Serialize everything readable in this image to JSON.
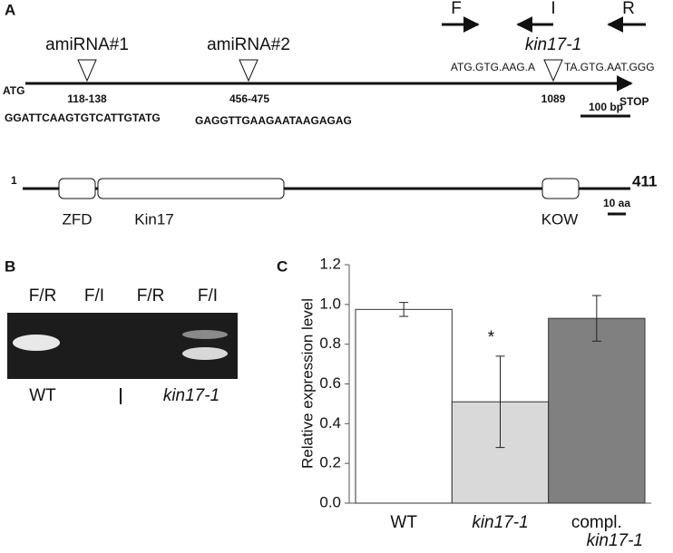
{
  "panel_a": {
    "label": "A",
    "primers": [
      "F",
      "I",
      "R"
    ],
    "mutant": "kin17-1",
    "start": "ATG",
    "stop": "STOP",
    "sites": [
      {
        "name": "amiRNA#1",
        "position": "118-138",
        "sequence": "GGATTCAAGTGTCATTGTATG"
      },
      {
        "name": "amiRNA#2",
        "position": "456-475",
        "sequence": "GAGGTTGAAGAATAAGAGAG"
      }
    ],
    "insertion": {
      "left": "ATG.GTG.AAG.A",
      "position": "1089",
      "right": "TA.GTG.AAT.GGG"
    },
    "scale_gene": "100 bp",
    "protein_start": "1",
    "protein_end": "411",
    "domains": [
      "ZFD",
      "Kin17",
      "KOW"
    ],
    "scale_protein": "10 aa"
  },
  "panel_b": {
    "label": "B",
    "lanes": [
      "F/R",
      "F/I",
      "F/R",
      "F/I"
    ],
    "groups": [
      "WT",
      "kin17-1"
    ]
  },
  "panel_c": {
    "label": "C"
  },
  "chart_data": {
    "type": "bar",
    "y_label": "Relative expression level",
    "categories": [
      "WT",
      "kin17-1",
      "compl. kin17-1"
    ],
    "values": [
      0.975,
      0.51,
      0.93
    ],
    "errors": [
      0.035,
      0.23,
      0.115
    ],
    "colors": [
      "#ffffff",
      "#d9d9d9",
      "#808080"
    ],
    "annotations": [
      null,
      "*",
      null
    ],
    "ylim": [
      0,
      1.2
    ],
    "yticks": [
      {
        "value": 0,
        "label": "0.0"
      },
      0.2,
      0.4,
      0.6,
      0.8,
      {
        "value": 1,
        "label": "1.0"
      },
      1.2
    ]
  }
}
